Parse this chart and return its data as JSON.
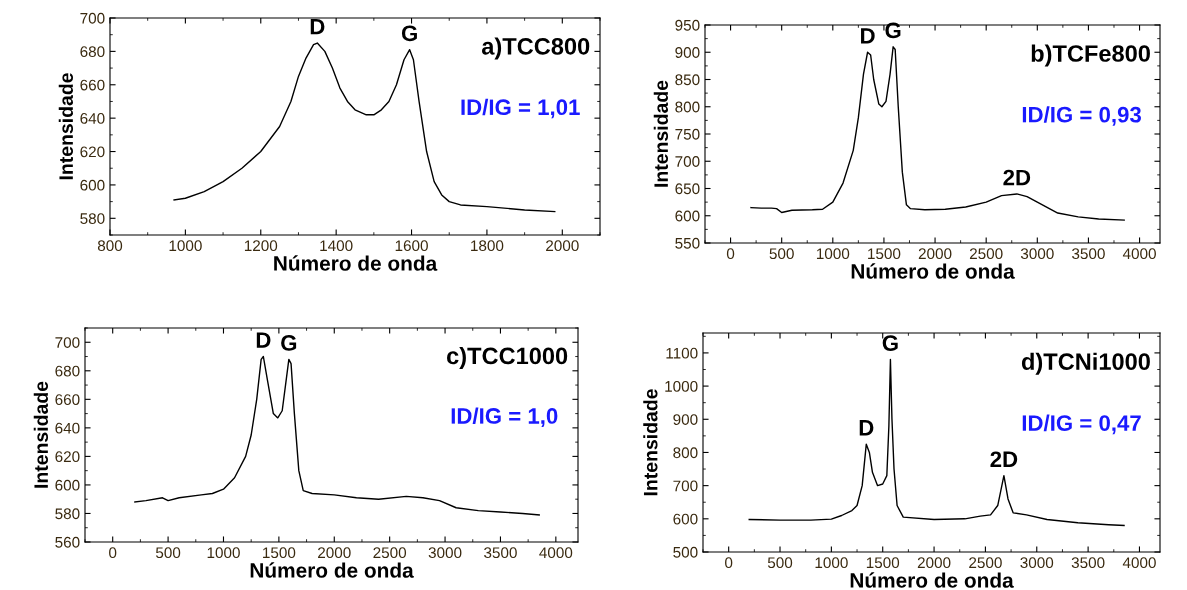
{
  "chart_data": [
    {
      "type": "line",
      "xlabel": "Número de onda",
      "ylabel": "Intensidade",
      "xlim": [
        800,
        2100
      ],
      "xticks": [
        800,
        1000,
        1200,
        1400,
        1600,
        1800,
        2000
      ],
      "ylim": [
        570,
        700
      ],
      "yticks": [
        580,
        600,
        620,
        640,
        660,
        680,
        700
      ],
      "grid": false,
      "legend": false,
      "series": [
        {
          "color": "#000000",
          "x": [
            970,
            1000,
            1050,
            1100,
            1150,
            1200,
            1250,
            1280,
            1300,
            1320,
            1340,
            1350,
            1370,
            1390,
            1410,
            1430,
            1450,
            1480,
            1500,
            1520,
            1540,
            1560,
            1580,
            1595,
            1605,
            1620,
            1640,
            1660,
            1680,
            1700,
            1730,
            1800,
            1900,
            1980
          ],
          "values": [
            591,
            592,
            596,
            602,
            610,
            620,
            635,
            650,
            665,
            676,
            684,
            685,
            680,
            670,
            658,
            650,
            645,
            642,
            642,
            645,
            650,
            660,
            675,
            681,
            675,
            650,
            620,
            602,
            594,
            590,
            588,
            587,
            585,
            584
          ]
        }
      ],
      "annotations": [
        "a)TCC800",
        "ID/IG = 1,01",
        {
          "text": "D",
          "x": 1350,
          "y": 685
        },
        {
          "text": "G",
          "x": 1595,
          "y": 681
        }
      ]
    },
    {
      "type": "line",
      "xlabel": "Número de onda",
      "ylabel": "Intensidade",
      "xlim": [
        -250,
        4200
      ],
      "xticks": [
        0,
        500,
        1000,
        1500,
        2000,
        2500,
        3000,
        3500,
        4000
      ],
      "ylim": [
        550,
        950
      ],
      "yticks": [
        550,
        600,
        650,
        700,
        750,
        800,
        850,
        900,
        950
      ],
      "grid": false,
      "legend": false,
      "series": [
        {
          "color": "#000000",
          "x": [
            200,
            300,
            400,
            450,
            500,
            600,
            800,
            900,
            1000,
            1100,
            1200,
            1250,
            1300,
            1340,
            1370,
            1400,
            1450,
            1480,
            1520,
            1560,
            1590,
            1610,
            1640,
            1680,
            1720,
            1760,
            1900,
            2100,
            2300,
            2500,
            2650,
            2800,
            2900,
            3000,
            3200,
            3400,
            3600,
            3850
          ],
          "values": [
            615,
            614,
            614,
            613,
            606,
            610,
            611,
            612,
            625,
            660,
            720,
            780,
            860,
            900,
            895,
            850,
            805,
            800,
            810,
            860,
            910,
            905,
            800,
            680,
            620,
            613,
            611,
            612,
            616,
            625,
            637,
            640,
            635,
            625,
            605,
            598,
            594,
            592
          ]
        }
      ],
      "annotations": [
        "b)TCFe800",
        "ID/IG = 0,93",
        {
          "text": "D",
          "x": 1340,
          "y": 900
        },
        {
          "text": "G",
          "x": 1590,
          "y": 910
        },
        {
          "text": "2D",
          "x": 2800,
          "y": 640
        }
      ]
    },
    {
      "type": "line",
      "xlabel": "Número de onda",
      "ylabel": "Intensidade",
      "xlim": [
        -250,
        4200
      ],
      "xticks": [
        0,
        500,
        1000,
        1500,
        2000,
        2500,
        3000,
        3500,
        4000
      ],
      "ylim": [
        560,
        710
      ],
      "yticks": [
        560,
        580,
        600,
        620,
        640,
        660,
        680,
        700
      ],
      "grid": false,
      "legend": false,
      "series": [
        {
          "color": "#000000",
          "x": [
            200,
            300,
            450,
            500,
            600,
            800,
            900,
            1000,
            1100,
            1200,
            1250,
            1300,
            1340,
            1360,
            1400,
            1450,
            1490,
            1530,
            1560,
            1590,
            1610,
            1640,
            1680,
            1720,
            1800,
            2000,
            2200,
            2400,
            2650,
            2800,
            2950,
            3100,
            3300,
            3500,
            3700,
            3850
          ],
          "values": [
            588,
            589,
            591,
            589,
            591,
            593,
            594,
            597,
            605,
            620,
            635,
            660,
            688,
            690,
            672,
            650,
            647,
            652,
            670,
            688,
            685,
            650,
            610,
            596,
            594,
            593,
            591,
            590,
            592,
            591,
            589,
            584,
            582,
            581,
            580,
            579
          ]
        }
      ],
      "annotations": [
        "c)TCC1000",
        "ID/IG = 1,0",
        {
          "text": "D",
          "x": 1360,
          "y": 690
        },
        {
          "text": "G",
          "x": 1590,
          "y": 688
        }
      ]
    },
    {
      "type": "line",
      "xlabel": "Número de onda",
      "ylabel": "Intensidade",
      "xlim": [
        -250,
        4200
      ],
      "xticks": [
        0,
        500,
        1000,
        1500,
        2000,
        2500,
        3000,
        3500,
        4000
      ],
      "ylim": [
        500,
        1160
      ],
      "yticks": [
        500,
        600,
        700,
        800,
        900,
        1000,
        1100
      ],
      "grid": false,
      "legend": false,
      "series": [
        {
          "color": "#000000",
          "x": [
            200,
            500,
            800,
            1000,
            1100,
            1200,
            1250,
            1300,
            1340,
            1370,
            1400,
            1450,
            1500,
            1540,
            1560,
            1575,
            1590,
            1610,
            1640,
            1700,
            2000,
            2300,
            2450,
            2550,
            2620,
            2680,
            2720,
            2770,
            2900,
            3100,
            3400,
            3700,
            3850
          ],
          "values": [
            598,
            596,
            596,
            599,
            610,
            625,
            640,
            700,
            825,
            800,
            740,
            700,
            705,
            730,
            880,
            1080,
            900,
            750,
            640,
            605,
            598,
            600,
            608,
            612,
            640,
            730,
            660,
            618,
            612,
            598,
            588,
            582,
            580
          ]
        }
      ],
      "annotations": [
        "d)TCNi1000",
        "ID/IG = 0,47",
        {
          "text": "D",
          "x": 1340,
          "y": 825
        },
        {
          "text": "G",
          "x": 1575,
          "y": 1080
        },
        {
          "text": "2D",
          "x": 2680,
          "y": 730
        }
      ]
    }
  ]
}
